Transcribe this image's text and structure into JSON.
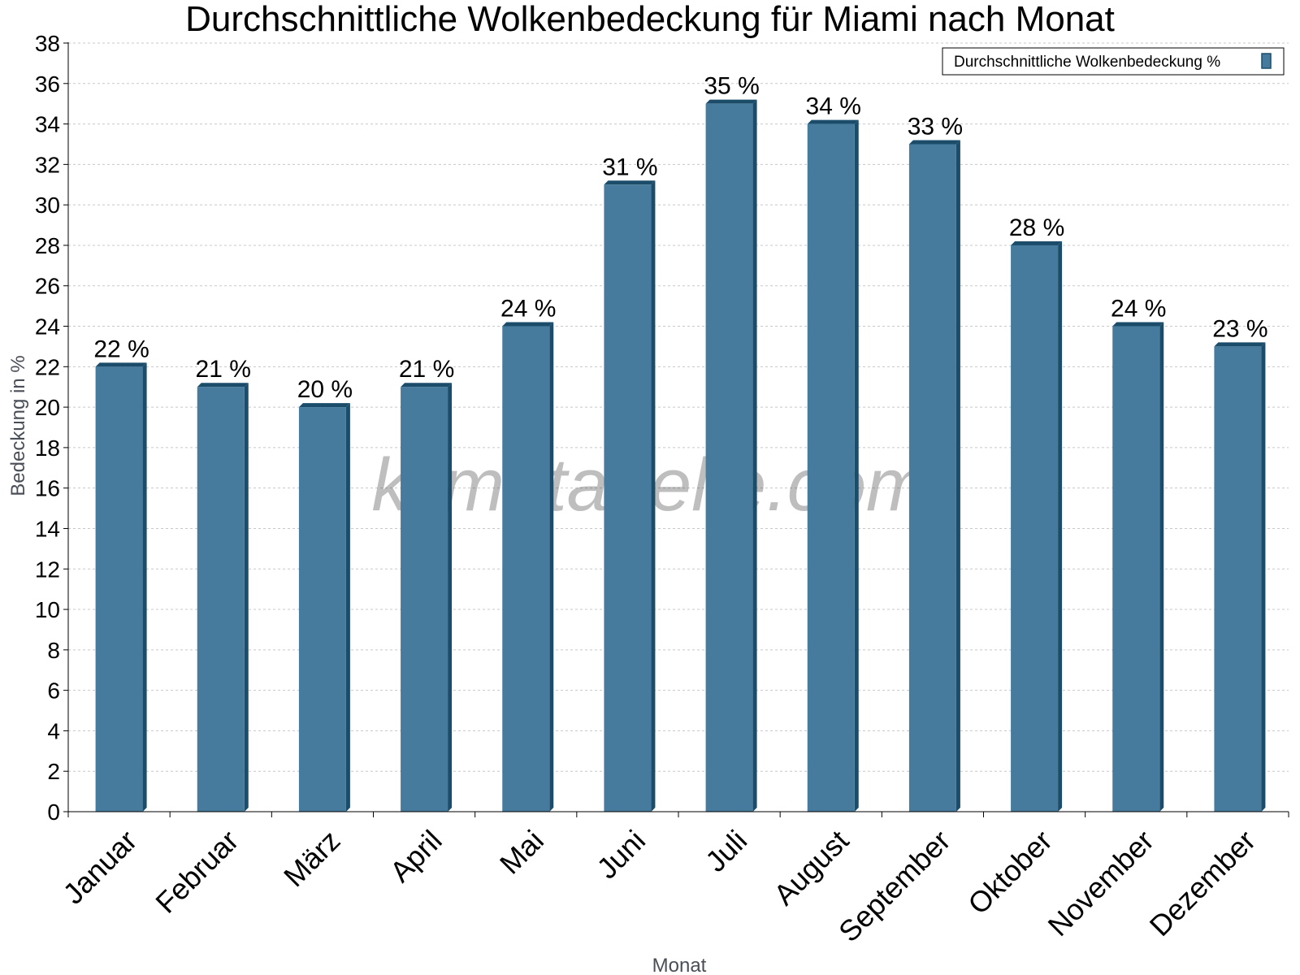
{
  "chart_data": {
    "type": "bar",
    "title": "Durchschnittliche Wolkenbedeckung für Miami nach Monat",
    "xlabel": "Monat",
    "ylabel": "Bedeckung in %",
    "categories": [
      "Januar",
      "Februar",
      "März",
      "April",
      "Mai",
      "Juni",
      "Juli",
      "August",
      "September",
      "Oktober",
      "November",
      "Dezember"
    ],
    "series": [
      {
        "name": "Durchschnittliche Wolkenbedeckung %",
        "values": [
          22,
          21,
          20,
          21,
          24,
          31,
          35,
          34,
          33,
          28,
          24,
          23
        ],
        "labels": [
          "22 %",
          "21 %",
          "20 %",
          "21 %",
          "24 %",
          "31 %",
          "35 %",
          "34 %",
          "33 %",
          "28 %",
          "24 %",
          "23 %"
        ]
      }
    ],
    "ylim": [
      0,
      38
    ],
    "yticks": [
      0,
      2,
      4,
      6,
      8,
      10,
      12,
      14,
      16,
      18,
      20,
      22,
      24,
      26,
      28,
      30,
      32,
      34,
      36,
      38
    ],
    "grid": true,
    "legend_position": "top-right",
    "colors": {
      "bar": "#467b9d",
      "bar_dark": "#1b4d6b",
      "grid": "#c8c8c8"
    }
  },
  "watermark": "klimatabelle.com"
}
